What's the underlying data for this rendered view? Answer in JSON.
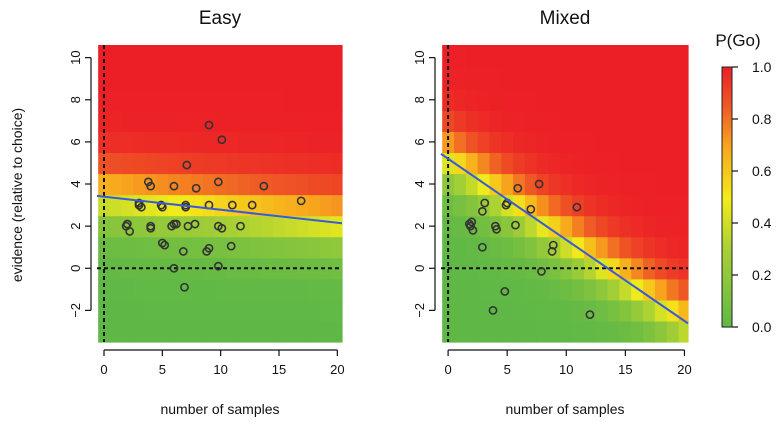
{
  "chart_data": [
    {
      "type": "heatmap",
      "title": "Easy",
      "xlabel": "number of samples",
      "ylabel": "evidence (relative to choice)",
      "xlim": [
        -0.6,
        20.4
      ],
      "ylim": [
        -3.5,
        10.6
      ],
      "xticks": [
        0,
        5,
        10,
        15,
        20
      ],
      "yticks": [
        -2,
        0,
        2,
        4,
        6,
        8,
        10
      ],
      "reference_lines": {
        "x": 0,
        "y": 0
      },
      "fit_line": {
        "intercept": 3.4,
        "slope": -0.062,
        "color": "#3b5bd6"
      },
      "points": [
        [
          9.0,
          6.8
        ],
        [
          10.1,
          6.1
        ],
        [
          7.1,
          4.9
        ],
        [
          3.8,
          4.1
        ],
        [
          4.0,
          3.9
        ],
        [
          6.0,
          3.9
        ],
        [
          7.9,
          3.8
        ],
        [
          9.8,
          4.1
        ],
        [
          13.7,
          3.9
        ],
        [
          3.0,
          3.0
        ],
        [
          3.0,
          3.1
        ],
        [
          3.2,
          2.9
        ],
        [
          4.9,
          3.0
        ],
        [
          5.0,
          2.9
        ],
        [
          7.0,
          3.0
        ],
        [
          7.0,
          2.9
        ],
        [
          9.0,
          3.0
        ],
        [
          11.0,
          3.0
        ],
        [
          12.7,
          3.0
        ],
        [
          16.9,
          3.2
        ],
        [
          1.9,
          2.0
        ],
        [
          2.0,
          2.1
        ],
        [
          2.2,
          1.75
        ],
        [
          4.0,
          2.0
        ],
        [
          4.0,
          1.9
        ],
        [
          6.0,
          2.1
        ],
        [
          5.8,
          2.0
        ],
        [
          6.2,
          2.1
        ],
        [
          7.8,
          2.1
        ],
        [
          7.2,
          2.0
        ],
        [
          9.8,
          2.0
        ],
        [
          10.1,
          1.9
        ],
        [
          11.7,
          2.0
        ],
        [
          5.0,
          1.2
        ],
        [
          5.2,
          1.1
        ],
        [
          6.8,
          0.8
        ],
        [
          8.8,
          0.8
        ],
        [
          9.0,
          0.95
        ],
        [
          10.9,
          1.05
        ],
        [
          6.0,
          0.0
        ],
        [
          9.8,
          0.1
        ],
        [
          6.9,
          -0.9
        ]
      ]
    },
    {
      "type": "heatmap",
      "title": "Mixed",
      "xlabel": "number of samples",
      "ylabel": "",
      "xlim": [
        -0.6,
        20.3
      ],
      "ylim": [
        -3.5,
        10.6
      ],
      "xticks": [
        0,
        5,
        10,
        15,
        20
      ],
      "yticks": [
        -2,
        0,
        2,
        4,
        6,
        8,
        10
      ],
      "reference_lines": {
        "x": 0,
        "y": 0
      },
      "fit_line": {
        "intercept": 5.2,
        "slope": -0.385,
        "color": "#3b5bd6"
      },
      "points": [
        [
          5.9,
          3.8
        ],
        [
          7.7,
          4.0
        ],
        [
          3.1,
          3.1
        ],
        [
          2.9,
          2.7
        ],
        [
          4.9,
          3.0
        ],
        [
          5.0,
          3.1
        ],
        [
          7.0,
          2.8
        ],
        [
          10.9,
          2.9
        ],
        [
          1.8,
          2.1
        ],
        [
          1.9,
          2.0
        ],
        [
          2.0,
          2.2
        ],
        [
          2.1,
          1.8
        ],
        [
          4.0,
          2.0
        ],
        [
          4.1,
          1.85
        ],
        [
          5.7,
          2.05
        ],
        [
          2.9,
          1.0
        ],
        [
          8.9,
          1.1
        ],
        [
          8.8,
          0.8
        ],
        [
          7.9,
          -0.15
        ],
        [
          4.8,
          -1.1
        ],
        [
          3.8,
          -2.0
        ],
        [
          12.0,
          -2.2
        ]
      ]
    }
  ],
  "colorbar": {
    "title": "P(Go)",
    "ticks": [
      "0.0",
      "0.2",
      "0.4",
      "0.6",
      "0.8",
      "1.0"
    ],
    "range": [
      0,
      1
    ],
    "colors": [
      "#5fb846",
      "#a8d035",
      "#f3ec1a",
      "#f8a51d",
      "#ef5a25",
      "#ec1f26"
    ]
  }
}
